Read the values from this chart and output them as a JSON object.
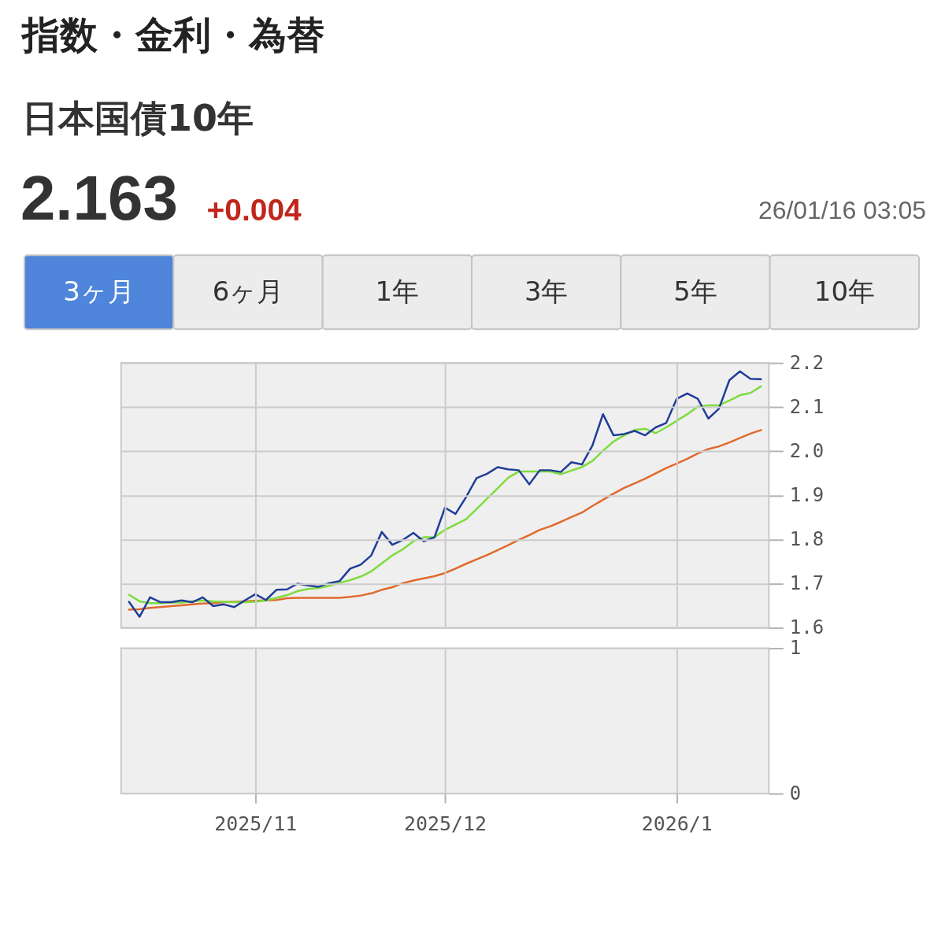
{
  "chart_data": [
    {
      "type": "other",
      "title": "指数・金利・為替",
      "subtitle": "日本国債10年",
      "annotations": [
        "2.163",
        "+0.004",
        "26/01/16 03:05",
        "3ヶ月",
        "6ヶ月",
        "1年",
        "3年",
        "5年",
        "10年"
      ]
    },
    {
      "type": "line",
      "categories": [
        null,
        null,
        null,
        null,
        null,
        null,
        null,
        null,
        null,
        null,
        null,
        null,
        "2025/11",
        null,
        null,
        null,
        null,
        null,
        null,
        null,
        null,
        null,
        null,
        null,
        null,
        null,
        null,
        null,
        null,
        null,
        "2025/12",
        null,
        null,
        null,
        null,
        null,
        null,
        null,
        null,
        null,
        null,
        null,
        null,
        null,
        null,
        null,
        null,
        null,
        null,
        null,
        null,
        null,
        "2026/1",
        null,
        null,
        null,
        null,
        null,
        null,
        null,
        null
      ],
      "series": [
        {
          "color": "#1f3d99",
          "values": [
            1.659,
            1.625,
            1.669,
            1.658,
            1.658,
            1.662,
            1.658,
            1.669,
            1.649,
            1.653,
            1.647,
            1.662,
            1.676,
            1.663,
            1.686,
            1.687,
            1.7,
            1.696,
            1.693,
            1.701,
            1.706,
            1.734,
            1.743,
            1.764,
            1.817,
            1.788,
            1.799,
            1.815,
            1.796,
            1.805,
            1.872,
            1.858,
            1.896,
            1.939,
            1.949,
            1.964,
            1.959,
            1.957,
            1.925,
            1.957,
            1.957,
            1.953,
            1.975,
            1.97,
            2.013,
            2.084,
            2.036,
            2.039,
            2.046,
            2.036,
            2.054,
            2.064,
            2.119,
            2.131,
            2.119,
            2.074,
            2.096,
            2.161,
            2.181,
            2.164,
            2.163
          ]
        },
        {
          "color": "#7edc3e",
          "values": [
            1.675,
            1.66,
            1.656,
            1.656,
            1.657,
            1.657,
            1.66,
            1.662,
            1.66,
            1.659,
            1.658,
            1.658,
            1.659,
            1.662,
            1.668,
            1.674,
            1.683,
            1.688,
            1.69,
            1.695,
            1.702,
            1.708,
            1.716,
            1.728,
            1.746,
            1.764,
            1.778,
            1.796,
            1.805,
            1.805,
            1.822,
            1.834,
            1.846,
            1.869,
            1.893,
            1.916,
            1.94,
            1.954,
            1.954,
            1.954,
            1.954,
            1.948,
            1.956,
            1.964,
            1.978,
            2.001,
            2.022,
            2.036,
            2.048,
            2.051,
            2.041,
            2.054,
            2.069,
            2.084,
            2.101,
            2.104,
            2.104,
            2.115,
            2.127,
            2.132,
            2.147
          ]
        },
        {
          "color": "#e0692c",
          "values": [
            1.641,
            1.642,
            1.645,
            1.647,
            1.649,
            1.651,
            1.653,
            1.655,
            1.656,
            1.658,
            1.659,
            1.66,
            1.661,
            1.662,
            1.663,
            1.667,
            1.668,
            1.668,
            1.668,
            1.668,
            1.668,
            1.67,
            1.673,
            1.678,
            1.686,
            1.692,
            1.701,
            1.707,
            1.712,
            1.717,
            1.724,
            1.734,
            1.745,
            1.755,
            1.765,
            1.776,
            1.787,
            1.799,
            1.81,
            1.822,
            1.83,
            1.84,
            1.851,
            1.861,
            1.876,
            1.89,
            1.904,
            1.917,
            1.927,
            1.938,
            1.95,
            1.962,
            1.972,
            1.983,
            1.995,
            2.005,
            2.011,
            2.02,
            2.03,
            2.04,
            2.048
          ]
        }
      ],
      "ylim": [
        1.6,
        2.2
      ],
      "yticks": [
        1.6,
        1.7,
        1.8,
        1.9,
        {
          "value": 2.0,
          "label": "2.0"
        },
        2.1,
        2.2
      ],
      "grid": true,
      "tick_labels": "y"
    },
    {
      "type": "bar",
      "categories": [
        null,
        null,
        null,
        null,
        null,
        null,
        null,
        null,
        null,
        null,
        null,
        null,
        "2025/11",
        null,
        null,
        null,
        null,
        null,
        null,
        null,
        null,
        null,
        null,
        null,
        null,
        null,
        null,
        null,
        null,
        null,
        "2025/12",
        null,
        null,
        null,
        null,
        null,
        null,
        null,
        null,
        null,
        null,
        null,
        null,
        null,
        null,
        null,
        null,
        null,
        null,
        null,
        null,
        null,
        "2026/1",
        null,
        null,
        null,
        null,
        null,
        null,
        null,
        null
      ],
      "values": [
        null,
        null,
        null,
        null,
        null,
        null,
        null,
        null,
        null,
        null,
        null,
        null,
        null,
        null,
        null,
        null,
        null,
        null,
        null,
        null,
        null,
        null,
        null,
        null,
        null,
        null,
        null,
        null,
        null,
        null,
        null,
        null,
        null,
        null,
        null,
        null,
        null,
        null,
        null,
        null,
        null,
        null,
        null,
        null,
        null,
        null,
        null,
        null,
        null,
        null,
        null,
        null,
        null,
        null,
        null,
        null,
        null,
        null,
        null,
        null,
        null
      ],
      "ylim": [
        0,
        1
      ],
      "yticks": [
        0,
        1
      ],
      "grid": "x"
    }
  ]
}
